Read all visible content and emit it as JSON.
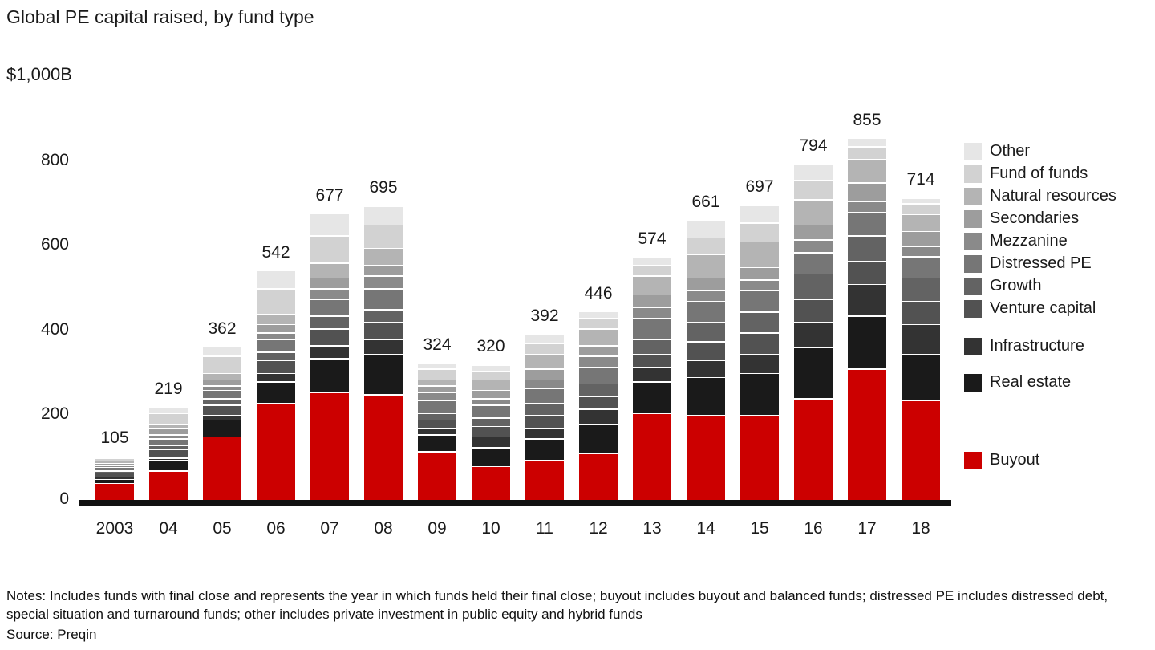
{
  "title": "Global PE capital raised, by fund type",
  "axis_unit": "$1,000B",
  "notes_line": "Notes: Includes funds with final close and represents the year in which funds held their final close; buyout includes buyout and balanced funds; distressed PE includes distressed debt, special situation and turnaround funds; other includes private investment in public equity and hybrid funds",
  "source": "Source: Preqin",
  "chart_data": {
    "type": "bar",
    "stacked": true,
    "title": "Global PE capital raised, by fund type",
    "ylabel": "$1,000B",
    "ylim": [
      0,
      1000
    ],
    "yticks": [
      0,
      200,
      400,
      600,
      800
    ],
    "grid": false,
    "legend_position": "right",
    "categories": [
      "2003",
      "04",
      "05",
      "06",
      "07",
      "08",
      "09",
      "10",
      "11",
      "12",
      "13",
      "14",
      "15",
      "16",
      "17",
      "18"
    ],
    "totals": [
      105,
      219,
      362,
      542,
      677,
      695,
      324,
      320,
      392,
      446,
      574,
      661,
      697,
      794,
      855,
      714
    ],
    "series": [
      {
        "name": "Buyout",
        "color": "#cc0000",
        "values": [
          40,
          70,
          150,
          230,
          255,
          250,
          115,
          80,
          95,
          110,
          205,
          200,
          200,
          240,
          310,
          235
        ]
      },
      {
        "name": "Real estate",
        "color": "#1a1a1a",
        "values": [
          10,
          25,
          40,
          50,
          80,
          95,
          40,
          45,
          50,
          70,
          75,
          90,
          100,
          120,
          125,
          110
        ]
      },
      {
        "name": "Infrastructure",
        "color": "#333333",
        "values": [
          5,
          5,
          10,
          20,
          30,
          35,
          15,
          25,
          25,
          35,
          35,
          40,
          45,
          60,
          75,
          70
        ]
      },
      {
        "name": "Venture capital",
        "color": "#525252",
        "values": [
          10,
          20,
          25,
          30,
          40,
          40,
          20,
          25,
          30,
          30,
          30,
          45,
          50,
          55,
          55,
          55
        ]
      },
      {
        "name": "Growth",
        "color": "#636363",
        "values": [
          5,
          10,
          15,
          20,
          30,
          30,
          15,
          20,
          30,
          30,
          35,
          45,
          50,
          60,
          60,
          55
        ]
      },
      {
        "name": "Distressed PE",
        "color": "#767676",
        "values": [
          8,
          15,
          20,
          30,
          40,
          50,
          30,
          30,
          35,
          40,
          50,
          50,
          50,
          50,
          55,
          50
        ]
      },
      {
        "name": "Mezzanine",
        "color": "#8a8a8a",
        "values": [
          5,
          10,
          10,
          15,
          25,
          30,
          20,
          15,
          20,
          25,
          25,
          25,
          25,
          30,
          25,
          25
        ]
      },
      {
        "name": "Secondaries",
        "color": "#9d9d9d",
        "values": [
          5,
          15,
          15,
          20,
          25,
          25,
          15,
          20,
          25,
          25,
          30,
          30,
          30,
          35,
          45,
          35
        ]
      },
      {
        "name": "Natural resources",
        "color": "#b4b4b4",
        "values": [
          5,
          10,
          15,
          25,
          35,
          40,
          15,
          25,
          35,
          40,
          45,
          55,
          60,
          60,
          55,
          40
        ]
      },
      {
        "name": "Fund of funds",
        "color": "#d2d2d2",
        "values": [
          7,
          25,
          40,
          60,
          65,
          55,
          25,
          20,
          25,
          25,
          25,
          40,
          45,
          45,
          30,
          25
        ]
      },
      {
        "name": "Other",
        "color": "#e6e6e6",
        "values": [
          5,
          14,
          22,
          42,
          52,
          45,
          14,
          15,
          22,
          16,
          19,
          41,
          42,
          39,
          20,
          14
        ]
      }
    ]
  }
}
